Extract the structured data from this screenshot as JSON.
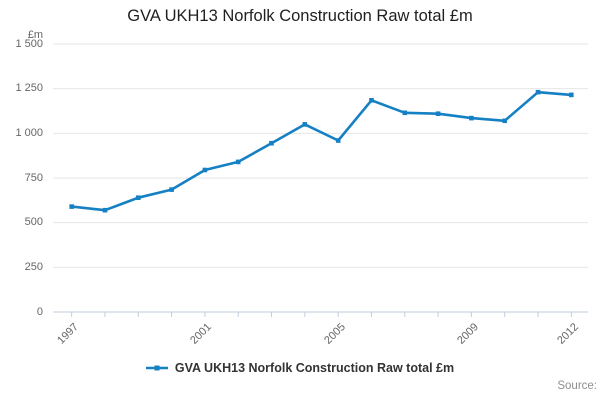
{
  "title": "GVA UKH13 Norfolk Construction Raw total £m",
  "y_axis": {
    "unit_label": "£m",
    "tick_labels": [
      "1 500",
      "1 250",
      "1 000",
      "750",
      "500",
      "250",
      "0"
    ]
  },
  "x_axis": {
    "labels": [
      {
        "text": "1997",
        "index": 0
      },
      {
        "text": "2001",
        "index": 4
      },
      {
        "text": "2005",
        "index": 8
      },
      {
        "text": "2009",
        "index": 12
      },
      {
        "text": "2012",
        "index": 15
      }
    ]
  },
  "legend": {
    "label": "GVA UKH13 Norfolk Construction Raw total £m"
  },
  "source_label": "Source:",
  "colors": {
    "line": "#1580c4",
    "grid": "#e6e6e6",
    "axis": "#c2cede",
    "tick_text": "#666666",
    "title_text": "#1f1f1f",
    "legend_text": "#333333",
    "source_text": "#8e8e8e"
  },
  "chart_data": {
    "type": "line",
    "x": [
      1997,
      1998,
      1999,
      2000,
      2001,
      2002,
      2003,
      2004,
      2005,
      2006,
      2007,
      2008,
      2009,
      2010,
      2011,
      2012
    ],
    "series": [
      {
        "name": "GVA UKH13 Norfolk Construction Raw total £m",
        "values": [
          590,
          570,
          640,
          685,
          795,
          840,
          945,
          1050,
          960,
          1185,
          1115,
          1110,
          1085,
          1070,
          1230,
          1215
        ]
      }
    ],
    "title": "GVA UKH13 Norfolk Construction Raw total £m",
    "xlabel": "",
    "ylabel": "£m",
    "ylim": [
      0,
      1500
    ],
    "y_tick_step": 250,
    "x_tick_labels_shown": [
      "1997",
      "2001",
      "2005",
      "2009",
      "2012"
    ],
    "grid": true,
    "legend_position": "bottom",
    "marker": "square"
  }
}
